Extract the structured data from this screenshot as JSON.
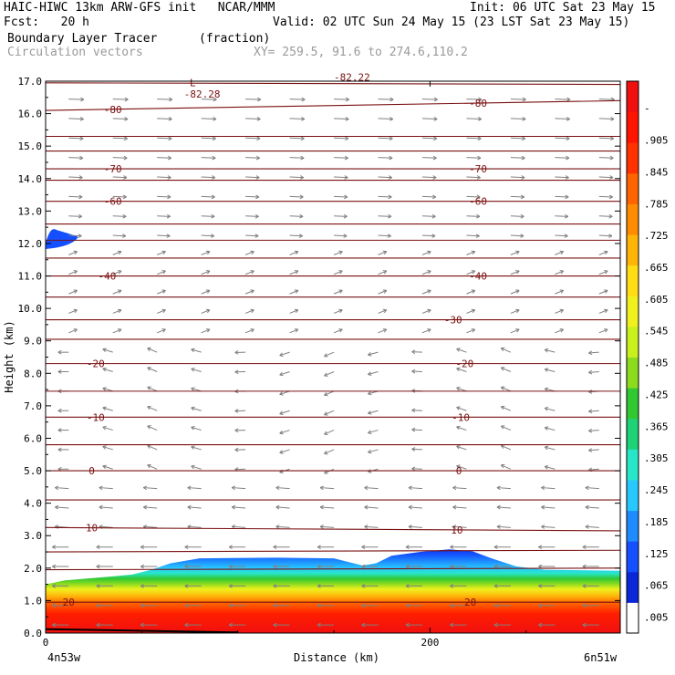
{
  "header": {
    "left1": "HAIC-HIWC 13km ARW-GFS init   NCAR/MMM",
    "left2": "Fcst:   20 h",
    "right1": "Init: 06 UTC Sat 23 May 15",
    "right2": "Valid: 02 UTC Sun 24 May 15 (23 LST Sat 23 May 15)",
    "field_name": "Boundary Layer Tracer",
    "field_units": "(fraction)",
    "vector_name": "Circulation vectors",
    "xy": "XY= 259.5, 91.6 to 274.6,110.2"
  },
  "colors": {
    "contour": "#7a1010",
    "vector": "#808080",
    "grid": "#000000"
  },
  "chart_data": {
    "type": "heatmap",
    "xlabel": "Distance (km)",
    "ylabel": "Height (km)",
    "xlim": [
      0,
      299
    ],
    "ylim": [
      0,
      17
    ],
    "x_ticks": [
      0,
      200
    ],
    "x_tick_labels": [
      "0",
      "200"
    ],
    "x_end_labels": [
      "4n53w",
      "6n51w"
    ],
    "y_ticks": [
      0,
      1,
      2,
      3,
      4,
      5,
      6,
      7,
      8,
      9,
      10,
      11,
      12,
      13,
      14,
      15,
      16,
      17
    ],
    "y_tick_labels": [
      "0.0",
      "1.0",
      "2.0",
      "3.0",
      "4.0",
      "5.0",
      "6.0",
      "7.0",
      "8.0",
      "9.0",
      "10.0",
      "11.0",
      "12.0",
      "13.0",
      "14.0",
      "15.0",
      "16.0",
      "17.0"
    ],
    "colorbar": {
      "labels": [
        ".005",
        ".065",
        ".125",
        ".185",
        ".245",
        ".305",
        ".365",
        ".425",
        ".485",
        ".545",
        ".605",
        ".665",
        ".725",
        ".785",
        ".845",
        ".905",
        "-"
      ],
      "colors": [
        "#ffffff",
        "#0a28d8",
        "#1450ff",
        "#1e8cff",
        "#28c8ff",
        "#28e6c8",
        "#1ed278",
        "#32c832",
        "#8cdc1e",
        "#c8f01e",
        "#f0f01e",
        "#ffdc14",
        "#ffb40a",
        "#ff8c00",
        "#ff6400",
        "#ff3200",
        "#ff1400",
        "#f01010"
      ]
    },
    "tracer_top_km": [
      [
        0,
        1.5
      ],
      [
        10,
        1.62
      ],
      [
        30,
        1.72
      ],
      [
        45,
        1.8
      ],
      [
        55,
        1.95
      ],
      [
        65,
        2.15
      ],
      [
        80,
        2.3
      ],
      [
        120,
        2.32
      ],
      [
        150,
        2.3
      ],
      [
        165,
        2.08
      ],
      [
        172,
        2.15
      ],
      [
        180,
        2.38
      ],
      [
        195,
        2.5
      ],
      [
        210,
        2.58
      ],
      [
        222,
        2.52
      ],
      [
        232,
        2.3
      ],
      [
        245,
        2.05
      ],
      [
        260,
        1.95
      ],
      [
        299,
        1.92
      ]
    ],
    "tracer_anvil": {
      "x": [
        0,
        17
      ],
      "y": [
        12.0,
        12.5
      ]
    },
    "temperature_contours": [
      {
        "label": "20",
        "y0": 0.95,
        "y1": 0.95,
        "label_x": [
          12,
          221
        ]
      },
      {
        "label": "10",
        "y0": 3.25,
        "y1": 3.15,
        "label_x": [
          24,
          214
        ]
      },
      {
        "label": "0",
        "y0": 5.0,
        "y1": 5.0,
        "label_x": [
          24,
          215
        ]
      },
      {
        "label": "-10",
        "y0": 6.65,
        "y1": 6.65,
        "label_x": [
          26,
          216
        ]
      },
      {
        "label": "-20",
        "y0": 8.3,
        "y1": 8.3,
        "label_x": [
          26,
          218
        ]
      },
      {
        "label": "-30",
        "y0": 9.65,
        "y1": 9.65,
        "label_x": [],
        "label_x_alt": [
          212
        ]
      },
      {
        "label": "-40",
        "y0": 11.0,
        "y1": 11.0,
        "label_x": [
          32,
          225
        ]
      },
      {
        "label": "-60",
        "y0": 13.3,
        "y1": 13.3,
        "label_x": [
          35,
          225
        ]
      },
      {
        "label": "-70",
        "y0": 14.3,
        "y1": 14.3,
        "label_x": [
          35,
          225
        ]
      },
      {
        "label": "-80",
        "y0": 16.1,
        "y1": 16.4,
        "label_x": [
          35,
          225
        ]
      }
    ],
    "unlabeled_contours": [
      [
        1.95,
        2.0
      ],
      [
        2.5,
        2.55
      ],
      [
        4.1,
        4.1
      ],
      [
        5.8,
        5.8
      ],
      [
        7.45,
        7.45
      ],
      [
        9.05,
        9.05
      ],
      [
        10.35,
        10.35
      ],
      [
        11.55,
        11.55
      ],
      [
        12.1,
        12.1
      ],
      [
        12.6,
        12.6
      ],
      [
        13.95,
        13.95
      ],
      [
        14.85,
        14.85
      ],
      [
        15.3,
        15.3
      ],
      [
        16.95,
        16.9
      ]
    ],
    "annotations": [
      {
        "text": "L",
        "x": 75,
        "y": 16.85
      },
      {
        "text": "-82.28",
        "x": 72,
        "y": 16.5
      },
      {
        "text": "-82.22",
        "x": 150,
        "y": 17.02
      }
    ]
  }
}
